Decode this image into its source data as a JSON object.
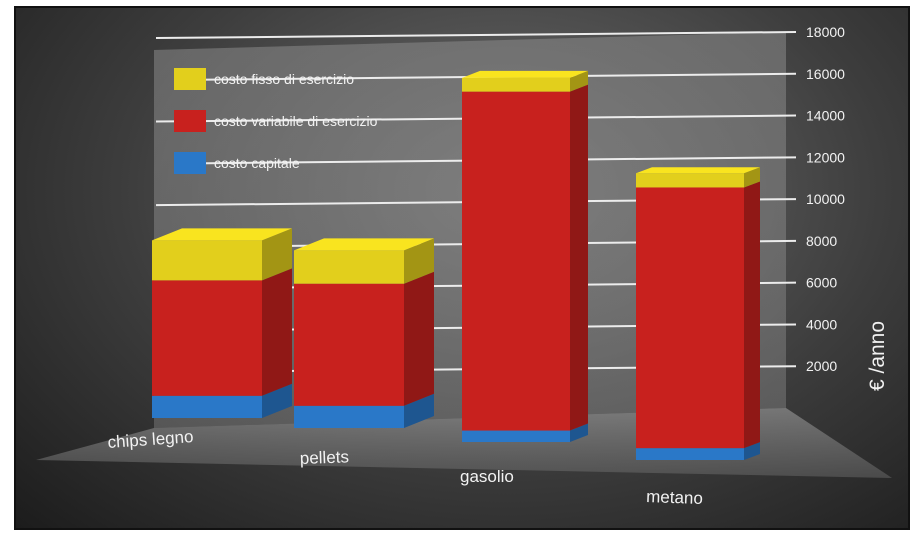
{
  "chart_data": {
    "type": "bar",
    "stacked": true,
    "three_d": true,
    "categories": [
      "chips legno",
      "pellets",
      "gasolio",
      "metano"
    ],
    "series": [
      {
        "name": "costo capitale",
        "color": "#2a78c8",
        "values": [
          1000,
          1000,
          500,
          500
        ]
      },
      {
        "name": "costo variabile di esercizio",
        "color": "#c8211e",
        "values": [
          5200,
          5500,
          14800,
          11000
        ]
      },
      {
        "name": "costo fisso di esercizio",
        "color": "#e2cf1c",
        "values": [
          1800,
          1500,
          600,
          600
        ]
      }
    ],
    "ylabel": "€ /anno",
    "ylim": [
      0,
      18000
    ],
    "yticks": [
      2000,
      4000,
      6000,
      8000,
      10000,
      12000,
      14000,
      16000,
      18000
    ],
    "grid": true,
    "legend_position": "top-left"
  }
}
